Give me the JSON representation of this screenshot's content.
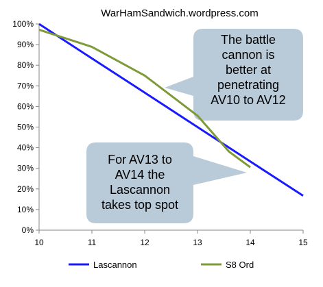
{
  "chart_data": {
    "type": "line",
    "title": "WarHamSandwich.wordpress.com",
    "xlabel": "",
    "ylabel": "",
    "x": [
      10,
      11,
      12,
      13,
      14,
      15
    ],
    "xlim": [
      10,
      15
    ],
    "ylim": [
      0,
      100
    ],
    "y_tick_labels": [
      "0%",
      "10%",
      "20%",
      "30%",
      "40%",
      "50%",
      "60%",
      "70%",
      "80%",
      "90%",
      "100%"
    ],
    "x_tick_labels": [
      "10",
      "11",
      "12",
      "13",
      "14",
      "15"
    ],
    "grid": false,
    "legend_position": "bottom",
    "series": [
      {
        "name": "Lascannon",
        "color": "#1a1aff",
        "x": [
          10,
          11,
          12,
          13,
          14,
          15
        ],
        "values": [
          100,
          83.3,
          66.7,
          50,
          33.3,
          16.7
        ]
      },
      {
        "name": "S8 Ord",
        "color": "#7f9a38",
        "x": [
          10,
          11,
          12,
          13,
          13.6,
          14
        ],
        "values": [
          97.2,
          88.9,
          75,
          55.5,
          38,
          30.5
        ]
      }
    ],
    "annotations": [
      {
        "lines": [
          "The battle",
          "cannon is",
          "better at",
          "penetrating",
          "AV10 to AV12"
        ]
      },
      {
        "lines": [
          "For AV13 to",
          "AV14 the",
          "Lascannon",
          "takes top spot"
        ]
      }
    ],
    "colors": {
      "callout_fill": "#b9cad9",
      "axis": "#868686",
      "text": "#000000"
    }
  }
}
